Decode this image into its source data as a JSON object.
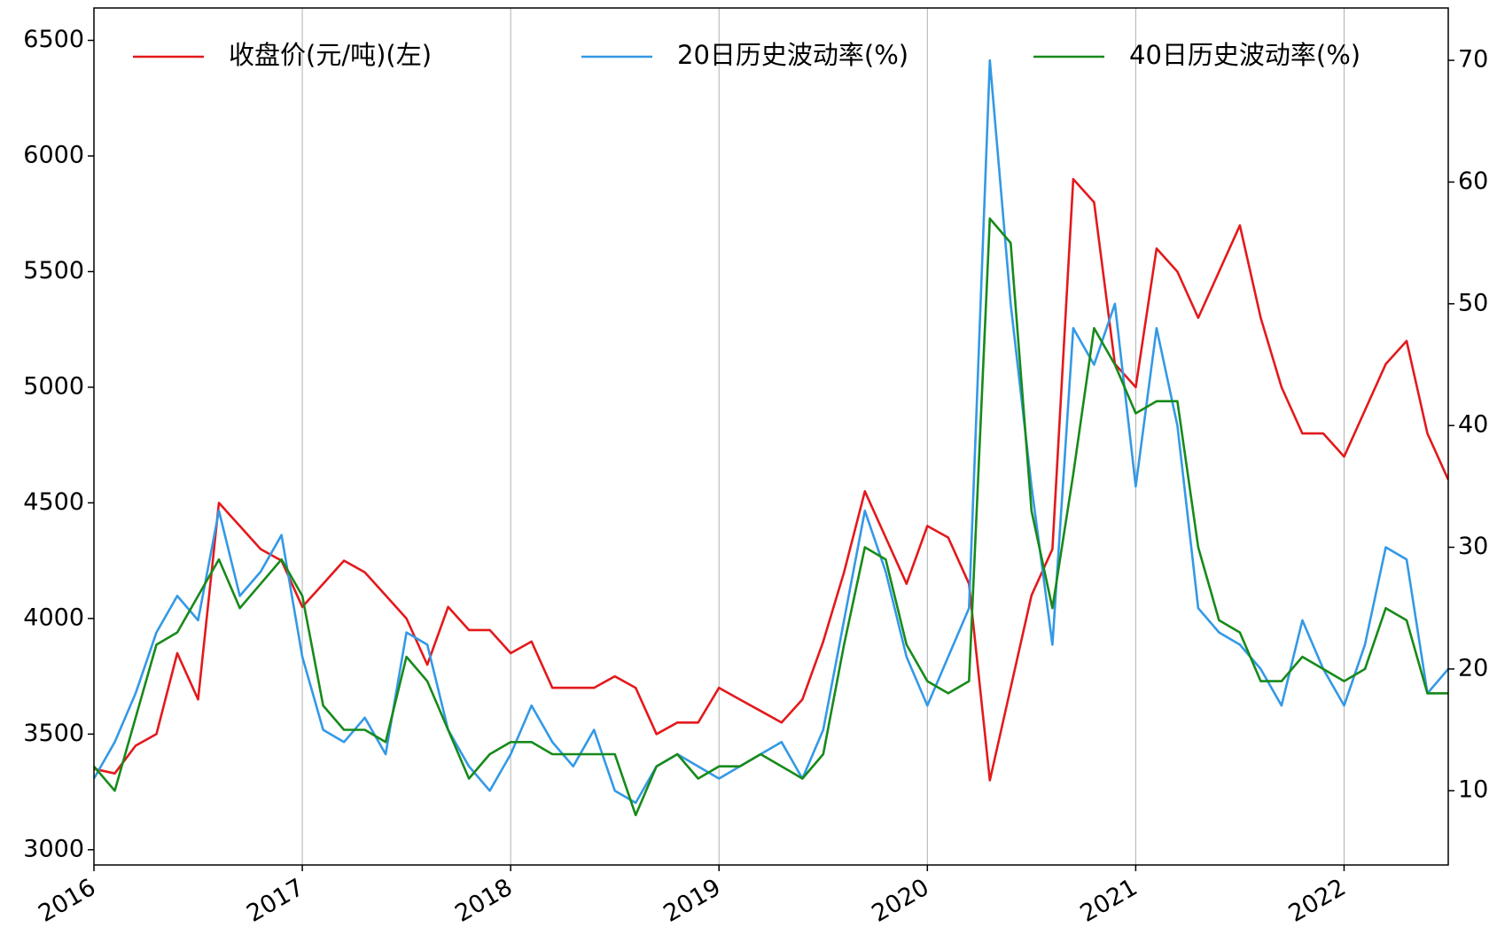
{
  "chart_data": {
    "type": "line",
    "x": [
      2016.0,
      2016.1,
      2016.2,
      2016.3,
      2016.4,
      2016.5,
      2016.6,
      2016.7,
      2016.8,
      2016.9,
      2017.0,
      2017.1,
      2017.2,
      2017.3,
      2017.4,
      2017.5,
      2017.6,
      2017.7,
      2017.8,
      2017.9,
      2018.0,
      2018.1,
      2018.2,
      2018.3,
      2018.4,
      2018.5,
      2018.6,
      2018.7,
      2018.8,
      2018.9,
      2019.0,
      2019.1,
      2019.2,
      2019.3,
      2019.4,
      2019.5,
      2019.6,
      2019.7,
      2019.8,
      2019.9,
      2020.0,
      2020.1,
      2020.2,
      2020.3,
      2020.4,
      2020.5,
      2020.6,
      2020.7,
      2020.8,
      2020.9,
      2021.0,
      2021.1,
      2021.2,
      2021.3,
      2021.4,
      2021.5,
      2021.6,
      2021.7,
      2021.8,
      2021.9,
      2022.0,
      2022.1,
      2022.2,
      2022.3,
      2022.4,
      2022.5
    ],
    "series": [
      {
        "name": "收盘价(元/吨)(左)",
        "color": "#e3191c",
        "axis": "y",
        "values": [
          3350,
          3330,
          3450,
          3500,
          3850,
          3650,
          4500,
          4400,
          4300,
          4250,
          4050,
          4150,
          4250,
          4200,
          4100,
          4000,
          3800,
          4050,
          3950,
          3950,
          3850,
          3900,
          3700,
          3700,
          3700,
          3750,
          3700,
          3500,
          3550,
          3550,
          3700,
          3650,
          3600,
          3550,
          3650,
          3900,
          4200,
          4550,
          4350,
          4150,
          4400,
          4350,
          4150,
          3300,
          3700,
          4100,
          4300,
          5900,
          5800,
          5100,
          5000,
          5600,
          5500,
          5300,
          5500,
          5700,
          5300,
          5000,
          4800,
          4800,
          4700,
          4900,
          5100,
          5200,
          4800,
          4600
        ]
      },
      {
        "name": "20日历史波动率(%)",
        "color": "#3399e6",
        "axis": "y2",
        "values": [
          11,
          14,
          18,
          23,
          26,
          24,
          33,
          26,
          28,
          31,
          21,
          15,
          14,
          16,
          13,
          23,
          22,
          15,
          12,
          10,
          13,
          17,
          14,
          12,
          15,
          10,
          9,
          12,
          13,
          12,
          11,
          12,
          13,
          14,
          11,
          15,
          24,
          33,
          28,
          21,
          17,
          21,
          25,
          70,
          50,
          35,
          22,
          48,
          45,
          50,
          35,
          48,
          40,
          25,
          23,
          22,
          20,
          17,
          24,
          20,
          17,
          22,
          30,
          29,
          18,
          20
        ]
      },
      {
        "name": "40日历史波动率(%)",
        "color": "#178a1a",
        "axis": "y2",
        "values": [
          12,
          10,
          16,
          22,
          23,
          26,
          29,
          25,
          27,
          29,
          26,
          17,
          15,
          15,
          14,
          21,
          19,
          15,
          11,
          13,
          14,
          14,
          13,
          13,
          13,
          13,
          8,
          12,
          13,
          11,
          12,
          12,
          13,
          12,
          11,
          13,
          22,
          30,
          29,
          22,
          19,
          18,
          19,
          57,
          55,
          33,
          25,
          36,
          48,
          45,
          41,
          42,
          42,
          30,
          24,
          23,
          19,
          19,
          21,
          20,
          19,
          20,
          25,
          24,
          18,
          18
        ]
      }
    ],
    "xlim": [
      2016,
      2022.5
    ],
    "xticks": [
      2016,
      2017,
      2018,
      2019,
      2020,
      2021,
      2022
    ],
    "ylim": [
      2934,
      6640
    ],
    "yticks": [
      3000,
      3500,
      4000,
      4500,
      5000,
      5500,
      6000,
      6500
    ],
    "y2lim": [
      3.9,
      74.3
    ],
    "y2ticks": [
      10,
      20,
      30,
      40,
      50,
      60,
      70
    ],
    "grid": "x",
    "legend": "upper center"
  }
}
